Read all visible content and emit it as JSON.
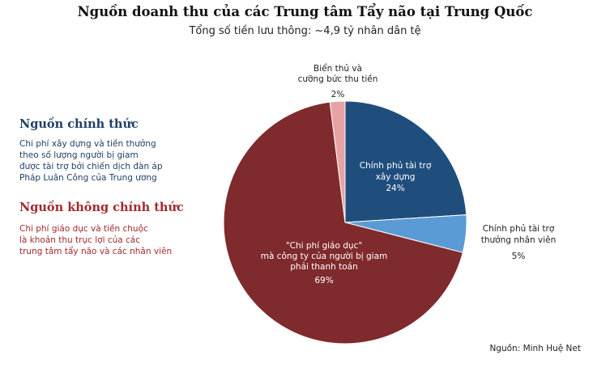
{
  "header": {
    "title": "Nguồn doanh thu của các Trung tâm Tẩy não tại Trung Quốc",
    "subtitle": "Tổng số tiền lưu thông: ~4,9 tỷ nhân dân tệ"
  },
  "legend": {
    "official_heading": "Nguồn chính thức",
    "official_description": [
      "Chi phí xây dựng và tiền thưởng",
      "theo số lượng người bị giam",
      "được tài trợ bởi chiến dịch đàn áp",
      "Pháp Luân Công của Trung ương"
    ],
    "unofficial_heading": "Nguồn không chính thức",
    "unofficial_description": [
      "Chi phí giáo dục và tiền chuộc",
      "là khoản thu trục lợi của các",
      "trung tâm tẩy não và các nhân viên"
    ]
  },
  "source": "Nguồn: Minh Huệ Net",
  "chart_data": {
    "type": "pie",
    "title": "Nguồn doanh thu của các Trung tâm Tẩy não tại Trung Quốc",
    "subtitle": "Tổng số tiền lưu thông: ~4,9 tỷ nhân dân tệ",
    "start": "top",
    "direction": "clockwise",
    "slices": [
      {
        "key": "construction",
        "label_lines": [
          "Chính phủ tài trợ",
          "xây dựng"
        ],
        "percent_label": "24%",
        "value": 24,
        "color": "#1f4e7d",
        "text_color": "#ffffff"
      },
      {
        "key": "bonus",
        "label_lines": [
          "Chính phủ tài trợ",
          "thưởng nhân viên"
        ],
        "percent_label": "5%",
        "value": 5,
        "color": "#5b9bd5",
        "text_color": "#222222"
      },
      {
        "key": "education",
        "label_lines": [
          "\"Chi phí giáo dục\"",
          "mà công ty của người bị giam",
          "phải thanh toán"
        ],
        "percent_label": "69%",
        "value": 69,
        "color": "#7f2a2d",
        "text_color": "#ffffff"
      },
      {
        "key": "extortion",
        "label_lines": [
          "Biển thủ và",
          "cưỡng bức thu tiền"
        ],
        "percent_label": "2%",
        "value": 2,
        "color": "#e8a2a6",
        "text_color": "#222222"
      }
    ]
  }
}
